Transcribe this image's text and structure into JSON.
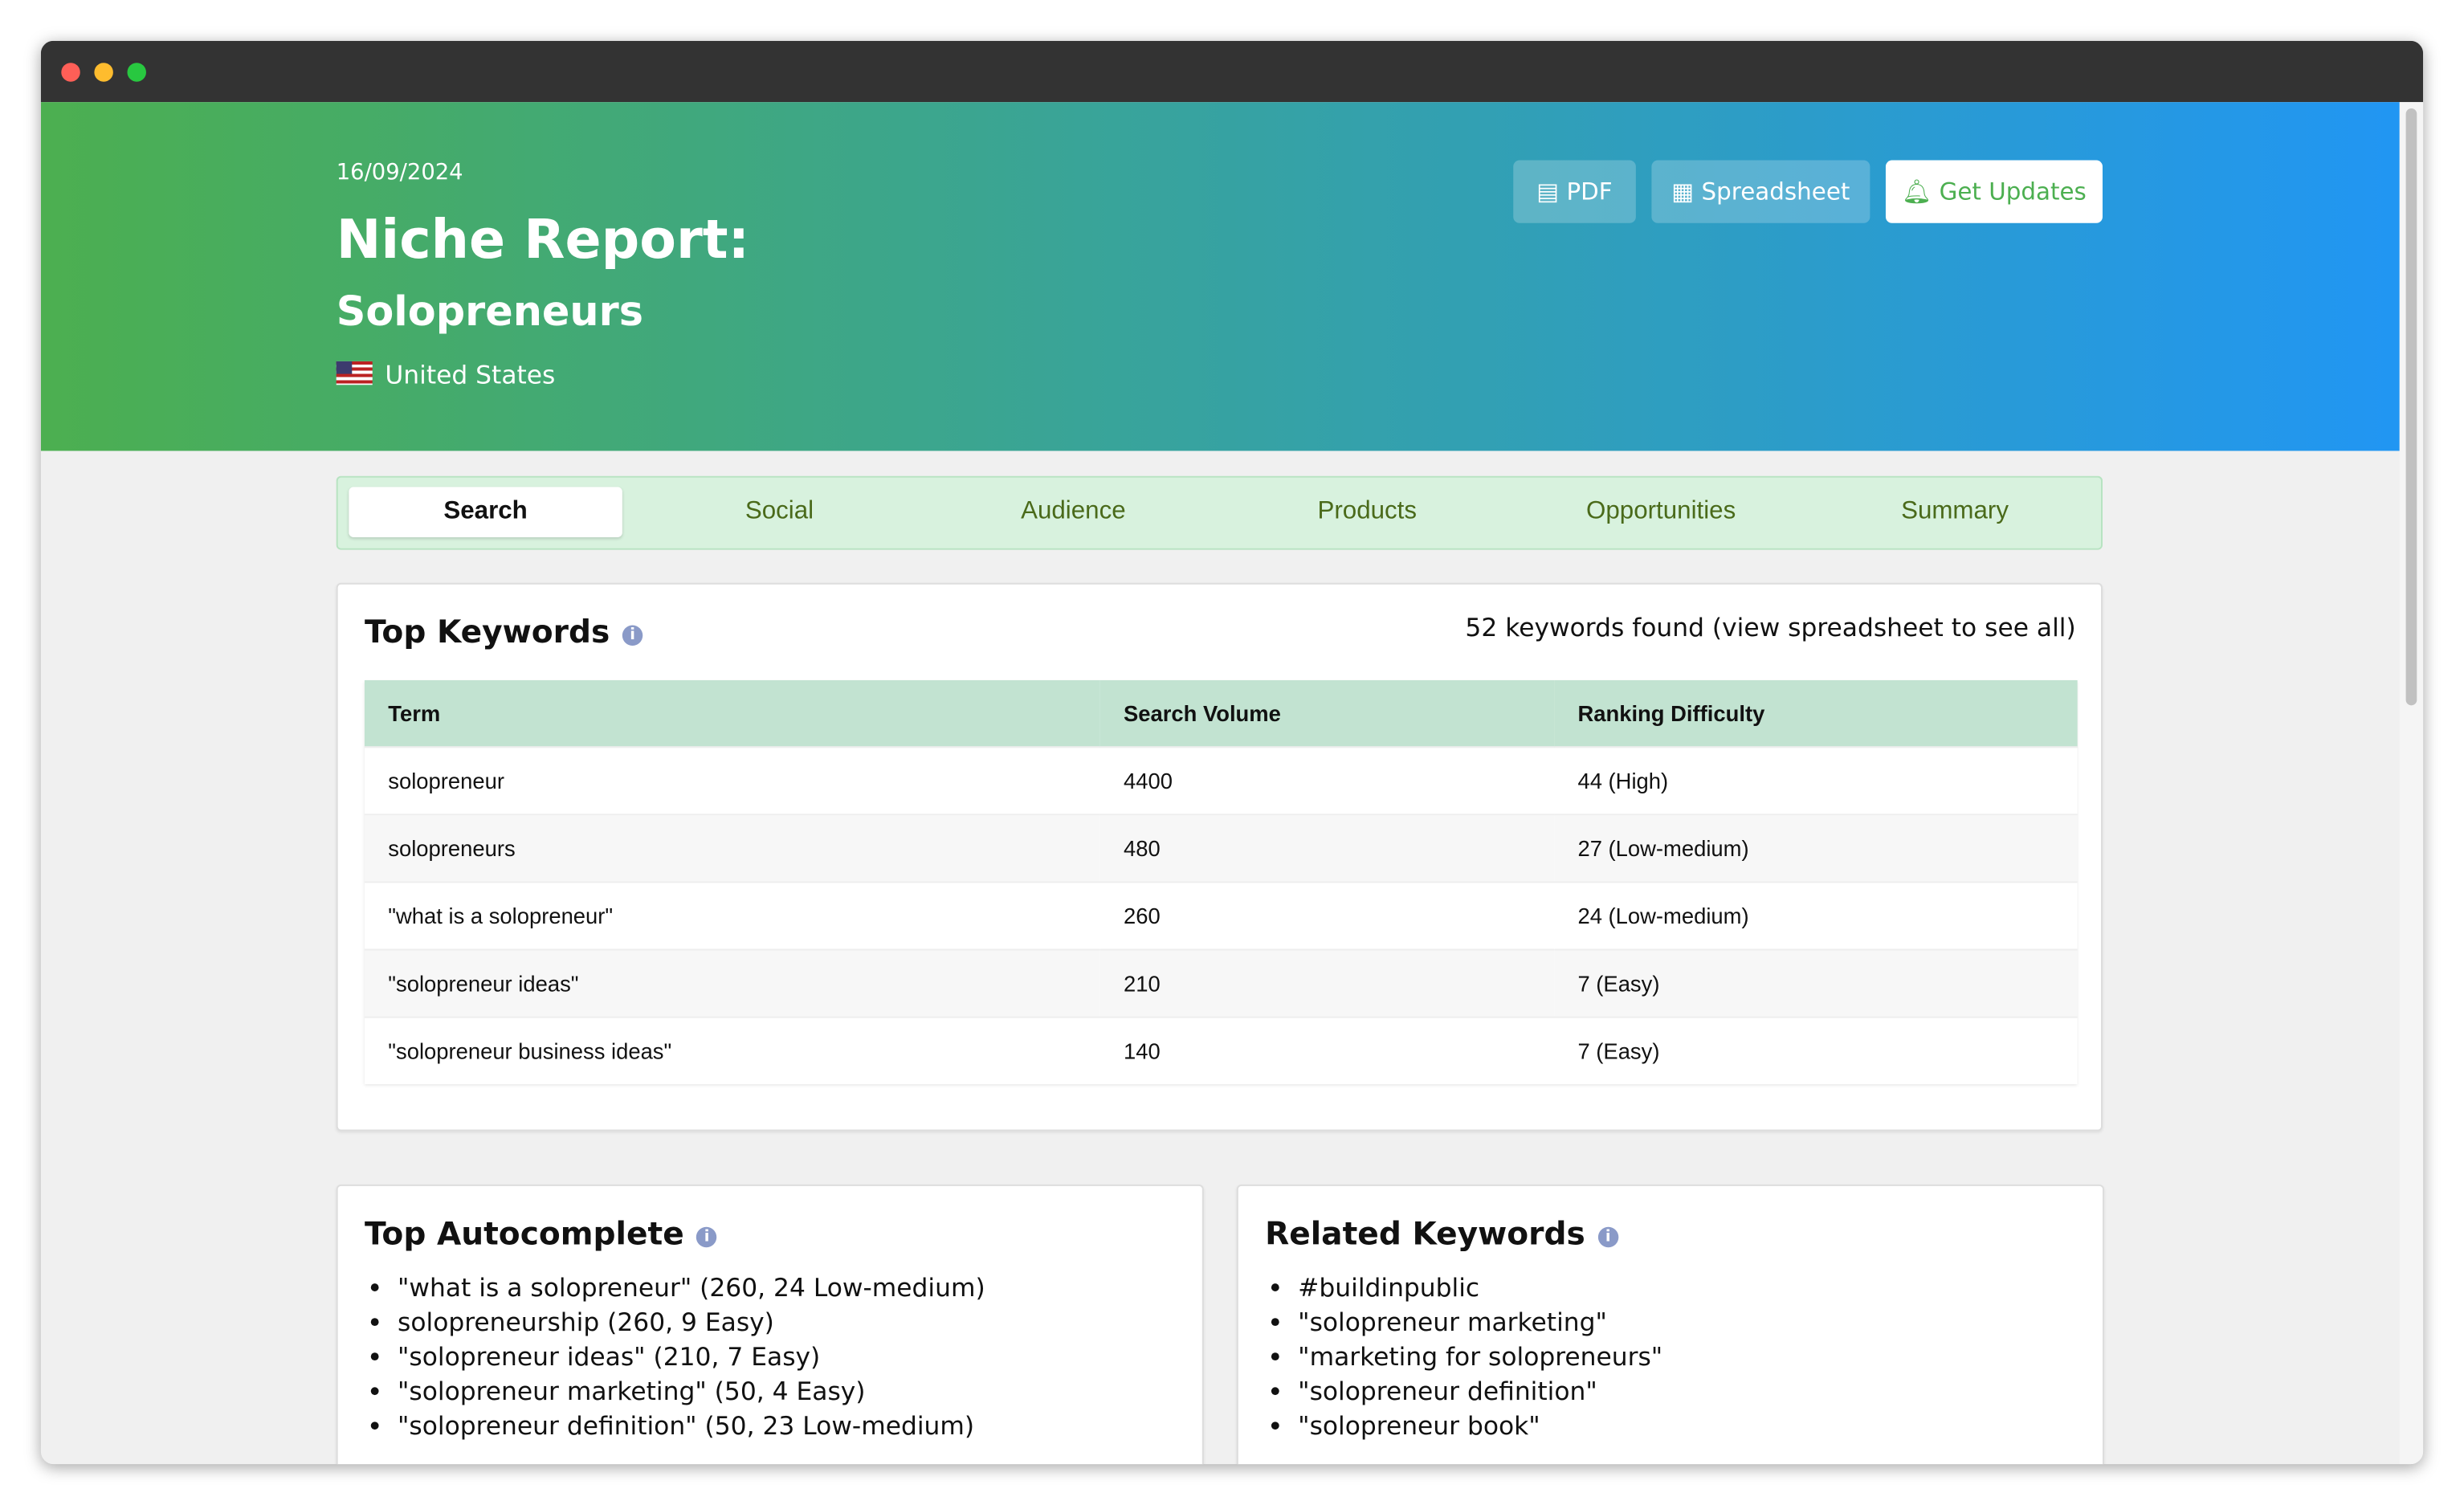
{
  "header": {
    "date": "16/09/2024",
    "title": "Niche Report:",
    "subtitle": "Solopreneurs",
    "country": "United States",
    "buttons": [
      "PDF",
      "Spreadsheet",
      "Get Updates"
    ]
  },
  "tabs": [
    "Search",
    "Social",
    "Audience",
    "Products",
    "Opportunities",
    "Summary"
  ],
  "top_keywords": {
    "title": "Top Keywords",
    "count_note": "52 keywords found (view spreadsheet to see all)",
    "table": {
      "headers": [
        "Term",
        "Search Volume",
        "Ranking Difficulty"
      ],
      "rows": [
        [
          "solopreneur",
          4400,
          "44 (High)"
        ],
        [
          "solopreneurs",
          480,
          "27 (Low-medium)"
        ],
        [
          "\"what is a solopreneur\"",
          260,
          "24 (Low-medium)"
        ],
        [
          "\"solopreneur ideas\"",
          210,
          "7 (Easy)"
        ],
        [
          "\"solopreneur business ideas\"",
          140,
          "7 (Easy)"
        ]
      ]
    }
  },
  "top_autocomplete": {
    "title": "Top Autocomplete",
    "items": [
      "\"what is a solopreneur\" (260, 24 Low-medium)",
      "solopreneurship (260, 9 Easy)",
      "\"solopreneur ideas\" (210, 7 Easy)",
      "\"solopreneur marketing\" (50, 4 Easy)",
      "\"solopreneur definition\" (50, 23 Low-medium)"
    ]
  },
  "related_keywords": {
    "title": "Related Keywords",
    "items": [
      "#buildinpublic",
      "\"solopreneur marketing\"",
      "\"marketing for solopreneurs\"",
      "\"solopreneur definition\"",
      "\"solopreneur book\""
    ]
  }
}
